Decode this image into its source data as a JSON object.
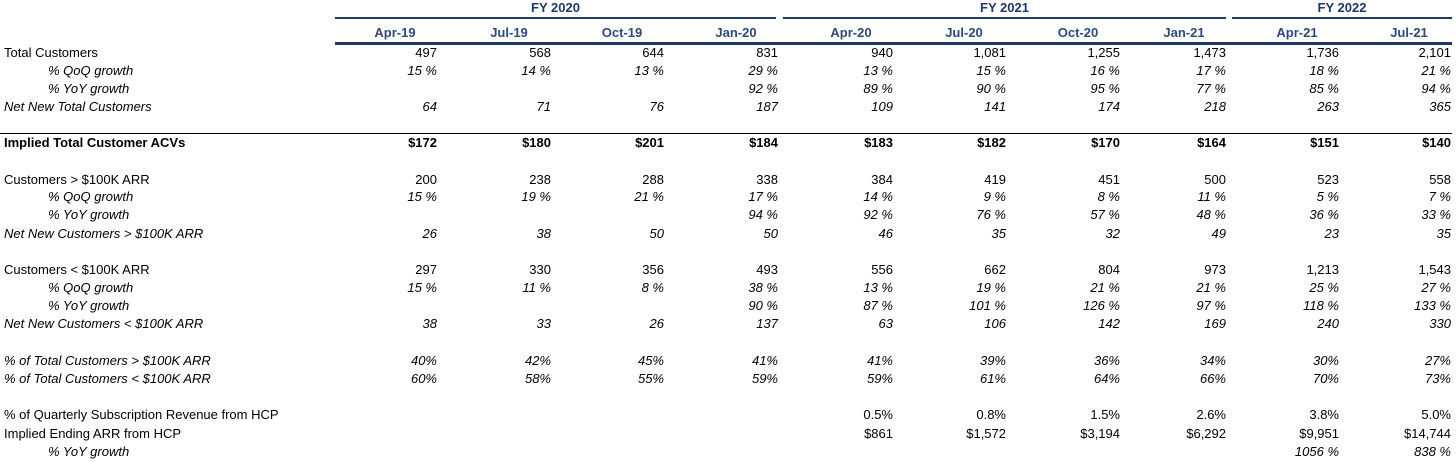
{
  "fiscal_years": [
    {
      "label": "FY 2020"
    },
    {
      "label": "FY 2021"
    },
    {
      "label": "FY 2022"
    }
  ],
  "columns": [
    "Apr-19",
    "Jul-19",
    "Oct-19",
    "Jan-20",
    "Apr-20",
    "Jul-20",
    "Oct-20",
    "Jan-21",
    "Apr-21",
    "Jul-21"
  ],
  "rows": [
    {
      "label": "Total Customers",
      "style": "normal",
      "values": [
        "497",
        "568",
        "644",
        "831",
        "940",
        "1,081",
        "1,255",
        "1,473",
        "1,736",
        "2,101"
      ]
    },
    {
      "label": "% QoQ growth",
      "style": "italic-indent",
      "values": [
        "15 %",
        "14 %",
        "13 %",
        "29 %",
        "13 %",
        "15 %",
        "16 %",
        "17 %",
        "18 %",
        "21 %"
      ]
    },
    {
      "label": "% YoY growth",
      "style": "italic-indent",
      "values": [
        "",
        "",
        "",
        "92 %",
        "89 %",
        "90 %",
        "95 %",
        "77 %",
        "85 %",
        "94 %"
      ]
    },
    {
      "label": "Net New Total Customers",
      "style": "italic",
      "values": [
        "64",
        "71",
        "76",
        "187",
        "109",
        "141",
        "174",
        "218",
        "263",
        "365"
      ]
    },
    {
      "label": "Implied Total Customer ACVs",
      "style": "bold",
      "values": [
        "$172",
        "$180",
        "$201",
        "$184",
        "$183",
        "$182",
        "$170",
        "$164",
        "$151",
        "$140"
      ]
    },
    {
      "label": "Customers > $100K ARR",
      "style": "normal",
      "values": [
        "200",
        "238",
        "288",
        "338",
        "384",
        "419",
        "451",
        "500",
        "523",
        "558"
      ]
    },
    {
      "label": "% QoQ growth",
      "style": "italic-indent",
      "values": [
        "15 %",
        "19 %",
        "21 %",
        "17 %",
        "14 %",
        "9 %",
        "8 %",
        "11 %",
        "5 %",
        "7 %"
      ]
    },
    {
      "label": "% YoY growth",
      "style": "italic-indent",
      "values": [
        "",
        "",
        "",
        "94 %",
        "92 %",
        "76 %",
        "57 %",
        "48 %",
        "36 %",
        "33 %"
      ]
    },
    {
      "label": "Net New Customers > $100K ARR",
      "style": "italic",
      "values": [
        "26",
        "38",
        "50",
        "50",
        "46",
        "35",
        "32",
        "49",
        "23",
        "35"
      ]
    },
    {
      "label": "Customers < $100K ARR",
      "style": "normal",
      "values": [
        "297",
        "330",
        "356",
        "493",
        "556",
        "662",
        "804",
        "973",
        "1,213",
        "1,543"
      ]
    },
    {
      "label": "% QoQ growth",
      "style": "italic-indent",
      "values": [
        "15 %",
        "11 %",
        "8 %",
        "38 %",
        "13 %",
        "19 %",
        "21 %",
        "21 %",
        "25 %",
        "27 %"
      ]
    },
    {
      "label": "% YoY growth",
      "style": "italic-indent",
      "values": [
        "",
        "",
        "",
        "90 %",
        "87 %",
        "101 %",
        "126 %",
        "97 %",
        "118 %",
        "133 %"
      ]
    },
    {
      "label": "Net New Customers < $100K ARR",
      "style": "italic",
      "values": [
        "38",
        "33",
        "26",
        "137",
        "63",
        "106",
        "142",
        "169",
        "240",
        "330"
      ]
    },
    {
      "label": "% of Total Customers > $100K ARR",
      "style": "italic",
      "values": [
        "40%",
        "42%",
        "45%",
        "41%",
        "41%",
        "39%",
        "36%",
        "34%",
        "30%",
        "27%"
      ]
    },
    {
      "label": "% of Total Customers < $100K ARR",
      "style": "italic",
      "values": [
        "60%",
        "58%",
        "55%",
        "59%",
        "59%",
        "61%",
        "64%",
        "66%",
        "70%",
        "73%"
      ]
    },
    {
      "label": "% of Quarterly Subscription Revenue from HCP",
      "style": "normal",
      "values": [
        "",
        "",
        "",
        "",
        "0.5%",
        "0.8%",
        "1.5%",
        "2.6%",
        "3.8%",
        "5.0%"
      ]
    },
    {
      "label": "Implied Ending ARR from HCP",
      "style": "normal",
      "values": [
        "",
        "",
        "",
        "",
        "$861",
        "$1,572",
        "$3,194",
        "$6,292",
        "$9,951",
        "$14,744"
      ]
    },
    {
      "label": "% YoY growth",
      "style": "italic-indent",
      "values": [
        "",
        "",
        "",
        "",
        "",
        "",
        "",
        "",
        "1056 %",
        "838 %"
      ]
    }
  ],
  "colors": {
    "header_navy": "#1f3864",
    "column_header": "#2e4a7d"
  }
}
